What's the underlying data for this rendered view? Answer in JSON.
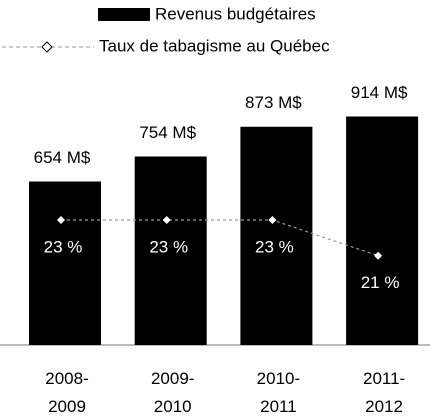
{
  "chart_data": {
    "type": "bar",
    "categories": [
      "2008-2009",
      "2009-2010",
      "2010-2011",
      "2011-2012"
    ],
    "series": [
      {
        "name": "Revenus budgétaires",
        "color": "#000000",
        "values": [
          654,
          754,
          873,
          914
        ],
        "value_labels": [
          "654 M$",
          "754 M$",
          "873 M$",
          "914 M$"
        ]
      },
      {
        "name": "Taux de tabagisme au Québec",
        "type": "line",
        "color": "#999999",
        "axis": "y2",
        "values": [
          23,
          23,
          23,
          21
        ],
        "value_labels": [
          "23 %",
          "23 %",
          "23 %",
          "21 %"
        ]
      }
    ],
    "ylim": [
      0,
      1000
    ],
    "y2lim": [
      16,
      30
    ]
  }
}
